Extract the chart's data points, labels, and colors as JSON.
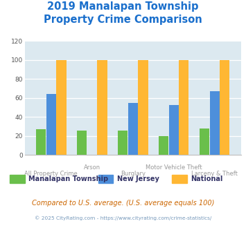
{
  "title_line1": "2019 Manalapan Township",
  "title_line2": "Property Crime Comparison",
  "title_color": "#1a6fcc",
  "categories": [
    "All Property Crime",
    "Arson",
    "Burglary",
    "Motor Vehicle Theft",
    "Larceny & Theft"
  ],
  "manalapan": [
    27,
    26,
    26,
    20,
    28
  ],
  "new_jersey": [
    64,
    0,
    55,
    53,
    67
  ],
  "national": [
    100,
    100,
    100,
    100,
    100
  ],
  "bar_colors": {
    "manalapan": "#6abf4b",
    "new_jersey": "#4d8fdb",
    "national": "#ffb733"
  },
  "ylim": [
    0,
    120
  ],
  "yticks": [
    0,
    20,
    40,
    60,
    80,
    100,
    120
  ],
  "plot_bg": "#dce9f0",
  "grid_color": "#ffffff",
  "xlabel_color": "#999999",
  "legend_labels": [
    "Manalapan Township",
    "New Jersey",
    "National"
  ],
  "legend_label_color": "#333366",
  "footnote1": "Compared to U.S. average. (U.S. average equals 100)",
  "footnote2": "© 2025 CityRating.com - https://www.cityrating.com/crime-statistics/",
  "footnote1_color": "#cc6600",
  "footnote2_color": "#7799bb"
}
